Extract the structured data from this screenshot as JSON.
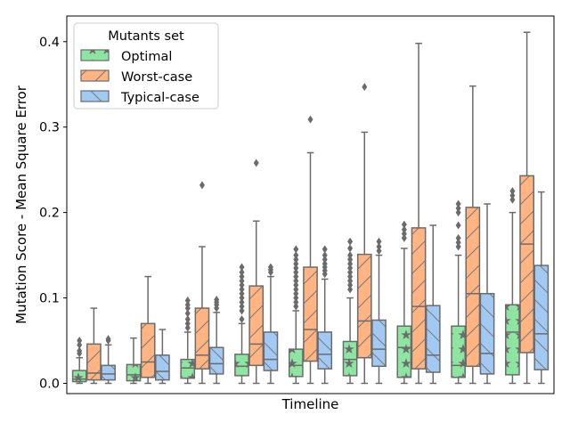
{
  "chart_data": {
    "type": "box",
    "title": "",
    "xlabel": "Timeline",
    "ylabel": "Mutation Score - Mean Square Error",
    "ylim": [
      -0.012,
      0.43
    ],
    "yticks": [
      0.0,
      0.1,
      0.2,
      0.3,
      0.4
    ],
    "ytick_labels": [
      "0.0",
      "0.1",
      "0.2",
      "0.3",
      "0.4"
    ],
    "grid": false,
    "x_tick_labels_shown": false,
    "legend": {
      "title": "Mutants set",
      "placement": "top-left",
      "entries": [
        "Optimal",
        "Worst-case",
        "Typical-case"
      ]
    },
    "series": [
      {
        "name": "Optimal",
        "color": "#8de5a1",
        "hatch": "stars",
        "boxes": [
          {
            "whislo": 0.0,
            "q1": 0.002,
            "med": 0.005,
            "q3": 0.015,
            "whishi": 0.03,
            "fliers": [
              0.035,
              0.038,
              0.045,
              0.05
            ]
          },
          {
            "whislo": 0.0,
            "q1": 0.003,
            "med": 0.01,
            "q3": 0.022,
            "whishi": 0.053,
            "fliers": []
          },
          {
            "whislo": 0.0,
            "q1": 0.006,
            "med": 0.018,
            "q3": 0.028,
            "whishi": 0.06,
            "fliers": [
              0.065,
              0.07,
              0.075,
              0.082,
              0.088,
              0.092,
              0.097
            ]
          },
          {
            "whislo": 0.0,
            "q1": 0.009,
            "med": 0.02,
            "q3": 0.034,
            "whishi": 0.07,
            "fliers": [
              0.075,
              0.085,
              0.09,
              0.095,
              0.1,
              0.105,
              0.11,
              0.115,
              0.12,
              0.125,
              0.13,
              0.136
            ]
          },
          {
            "whislo": 0.0,
            "q1": 0.008,
            "med": 0.021,
            "q3": 0.04,
            "whishi": 0.085,
            "fliers": [
              0.09,
              0.095,
              0.1,
              0.105,
              0.11,
              0.115,
              0.12,
              0.125,
              0.13,
              0.135,
              0.14,
              0.145,
              0.15,
              0.157
            ]
          },
          {
            "whislo": 0.0,
            "q1": 0.009,
            "med": 0.028,
            "q3": 0.049,
            "whishi": 0.1,
            "fliers": [
              0.11,
              0.115,
              0.12,
              0.125,
              0.13,
              0.135,
              0.14,
              0.145,
              0.15,
              0.158,
              0.166
            ]
          },
          {
            "whislo": 0.0,
            "q1": 0.007,
            "med": 0.042,
            "q3": 0.067,
            "whishi": 0.158,
            "fliers": [
              0.17,
              0.175,
              0.18,
              0.186
            ]
          },
          {
            "whislo": 0.0,
            "q1": 0.007,
            "med": 0.021,
            "q3": 0.067,
            "whishi": 0.15,
            "fliers": [
              0.16,
              0.165,
              0.17,
              0.185,
              0.2,
              0.205,
              0.21
            ]
          },
          {
            "whislo": 0.0,
            "q1": 0.01,
            "med": 0.06,
            "q3": 0.092,
            "whishi": 0.2,
            "fliers": [
              0.215,
              0.22,
              0.225
            ]
          }
        ]
      },
      {
        "name": "Worst-case",
        "color": "#ffb482",
        "hatch": "slash",
        "boxes": [
          {
            "whislo": 0.0,
            "q1": 0.004,
            "med": 0.012,
            "q3": 0.046,
            "whishi": 0.088,
            "fliers": []
          },
          {
            "whislo": 0.0,
            "q1": 0.007,
            "med": 0.025,
            "q3": 0.07,
            "whishi": 0.125,
            "fliers": []
          },
          {
            "whislo": 0.0,
            "q1": 0.017,
            "med": 0.033,
            "q3": 0.088,
            "whishi": 0.16,
            "fliers": [
              0.232
            ]
          },
          {
            "whislo": 0.0,
            "q1": 0.021,
            "med": 0.046,
            "q3": 0.114,
            "whishi": 0.19,
            "fliers": [
              0.258
            ]
          },
          {
            "whislo": 0.0,
            "q1": 0.026,
            "med": 0.063,
            "q3": 0.136,
            "whishi": 0.27,
            "fliers": [
              0.309
            ]
          },
          {
            "whislo": 0.0,
            "q1": 0.03,
            "med": 0.073,
            "q3": 0.151,
            "whishi": 0.294,
            "fliers": [
              0.347
            ]
          },
          {
            "whislo": 0.0,
            "q1": 0.017,
            "med": 0.09,
            "q3": 0.182,
            "whishi": 0.398,
            "fliers": []
          },
          {
            "whislo": 0.0,
            "q1": 0.02,
            "med": 0.105,
            "q3": 0.206,
            "whishi": 0.348,
            "fliers": []
          },
          {
            "whislo": 0.0,
            "q1": 0.036,
            "med": 0.163,
            "q3": 0.243,
            "whishi": 0.411,
            "fliers": []
          }
        ]
      },
      {
        "name": "Typical-case",
        "color": "#a1c9f4",
        "hatch": "backslash",
        "boxes": [
          {
            "whislo": 0.0,
            "q1": 0.004,
            "med": 0.011,
            "q3": 0.021,
            "whishi": 0.045,
            "fliers": [
              0.05,
              0.052
            ]
          },
          {
            "whislo": 0.0,
            "q1": 0.004,
            "med": 0.014,
            "q3": 0.033,
            "whishi": 0.063,
            "fliers": []
          },
          {
            "whislo": 0.0,
            "q1": 0.011,
            "med": 0.023,
            "q3": 0.042,
            "whishi": 0.083,
            "fliers": [
              0.088,
              0.092,
              0.095,
              0.098
            ]
          },
          {
            "whislo": 0.0,
            "q1": 0.015,
            "med": 0.028,
            "q3": 0.06,
            "whishi": 0.125,
            "fliers": [
              0.13,
              0.133,
              0.136
            ]
          },
          {
            "whislo": 0.0,
            "q1": 0.017,
            "med": 0.034,
            "q3": 0.06,
            "whishi": 0.122,
            "fliers": [
              0.128,
              0.132,
              0.136,
              0.14,
              0.145,
              0.15,
              0.157
            ]
          },
          {
            "whislo": 0.0,
            "q1": 0.02,
            "med": 0.04,
            "q3": 0.074,
            "whishi": 0.15,
            "fliers": [
              0.155,
              0.16,
              0.166
            ]
          },
          {
            "whislo": 0.0,
            "q1": 0.013,
            "med": 0.033,
            "q3": 0.091,
            "whishi": 0.185,
            "fliers": []
          },
          {
            "whislo": 0.0,
            "q1": 0.011,
            "med": 0.035,
            "q3": 0.105,
            "whishi": 0.21,
            "fliers": []
          },
          {
            "whislo": 0.0,
            "q1": 0.016,
            "med": 0.058,
            "q3": 0.138,
            "whishi": 0.224,
            "fliers": []
          }
        ]
      }
    ]
  }
}
